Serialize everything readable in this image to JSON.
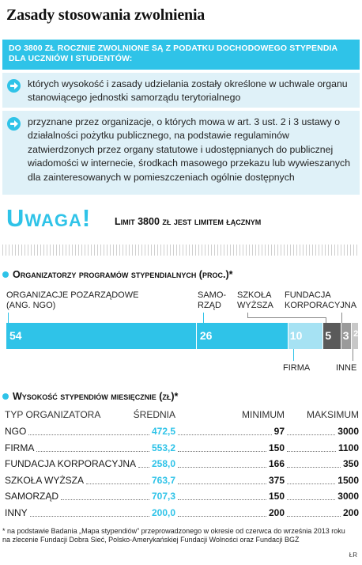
{
  "title": "Zasady stosowania zwolnienia",
  "banner": "DO 3800 ZŁ ROCZNIE ZWOLNIONE SĄ Z PODATKU DOCHODOWEGO STYPENDIA DLA UCZNIÓW I STUDENTÓW:",
  "bullets": [
    "których wysokość i zasady udzielania zostały określone w uchwale organu stanowiącego jednostki samorządu terytorialnego",
    "przyznane przez organizacje, o których mowa w art. 3 ust. 2 i 3 ustawy o działalności pożytku publicznego, na podstawie regulaminów zatwierdzonych przez organy statutowe i udostępnianych do publicznej wiadomości w internecie, środkach masowego przekazu lub wywieszanych dla zainteresowanych w pomieszczeniach ogólnie dostępnych"
  ],
  "uwaga": {
    "heading": "Uwaga!",
    "text": "Limit 3800 zł jest limitem łącznym"
  },
  "colors": {
    "accent": "#2fc3e8",
    "accent_light": "#a6e2f3",
    "dark_grey": "#5a5a5a",
    "mid_grey": "#9a9a9a",
    "light_grey": "#c8c8c8",
    "panel": "#dff1f8"
  },
  "section1": {
    "title": "Organizatorzy programów stypendialnych (proc.)*"
  },
  "chart_data": {
    "type": "bar",
    "title": "Organizatorzy programów stypendialnych (proc.)*",
    "categories": [
      "Organizacje pozarządowe (ANG. NGO)",
      "Samorząd",
      "Firma",
      "Szkoła wyższa",
      "Fundacja korporacyjna",
      "Inne"
    ],
    "values": [
      54,
      26,
      10,
      5,
      3,
      2
    ],
    "value_labels": [
      "54",
      "26",
      "10",
      "5",
      "3",
      "2"
    ]
  },
  "bar_labels": {
    "ngo_line1": "ORGANIZACJE POZARZĄDOWE",
    "ngo_line2": "(ANG. NGO)",
    "samorzad_line1": "SAMO-",
    "samorzad_line2": "RZĄD",
    "szkola_line1": "SZKOŁA",
    "szkola_line2": "WYŻSZA",
    "fundacja_line1": "FUNDACJA",
    "fundacja_line2": "KORPORACYJNA",
    "firma": "FIRMA",
    "inne": "INNE"
  },
  "section2": {
    "title": "Wysokość stypendiów miesięcznie (zł)*"
  },
  "table": {
    "headers": [
      "TYP ORGANIZATORA",
      "ŚREDNIA",
      "MINIMUM",
      "MAKSIMUM"
    ],
    "rows": [
      [
        "NGO",
        "472,5",
        "97",
        "3000"
      ],
      [
        "FIRMA",
        "553,2",
        "150",
        "1100"
      ],
      [
        "FUNDACJA KORPORACYJNA",
        "258,0",
        "166",
        "350"
      ],
      [
        "SZKOŁA WYŻSZA",
        "763,7",
        "375",
        "1500"
      ],
      [
        "SAMORZĄD",
        "707,3",
        "150",
        "3000"
      ],
      [
        "INNY",
        "200,0",
        "200",
        "200"
      ]
    ]
  },
  "footnote": "* na podstawie Badania „Mapa stypendiów” przeprowadzonego w okresie od czerwca do września 2013 roku na zlecenie Fundacji Dobra Sieć, Polsko-Amerykańskiej Fundacji Wolności oraz Fundacji BGŻ",
  "credit": "ŁR"
}
